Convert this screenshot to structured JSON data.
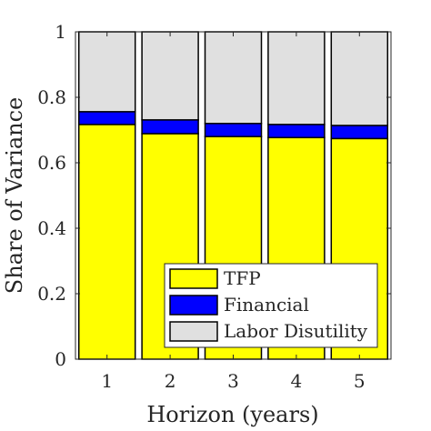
{
  "chart_data": {
    "type": "bar",
    "stacked": true,
    "categories": [
      "1",
      "2",
      "3",
      "4",
      "5"
    ],
    "series": [
      {
        "name": "TFP",
        "color": "#ffff00",
        "values": [
          0.717,
          0.689,
          0.68,
          0.677,
          0.674
        ]
      },
      {
        "name": "Financial",
        "color": "#0000ff",
        "values": [
          0.039,
          0.042,
          0.04,
          0.04,
          0.04
        ]
      },
      {
        "name": "Labor Disutility",
        "color": "#e0e0e0",
        "values": [
          0.244,
          0.269,
          0.28,
          0.283,
          0.286
        ]
      }
    ],
    "xlabel": "Horizon (years)",
    "ylabel": "Share of Variance",
    "ylim": [
      0,
      1
    ],
    "yticks": [
      "0",
      "0.2",
      "0.4",
      "0.6",
      "0.8",
      "1"
    ],
    "legend_position": "bottom-right",
    "grid": false
  }
}
